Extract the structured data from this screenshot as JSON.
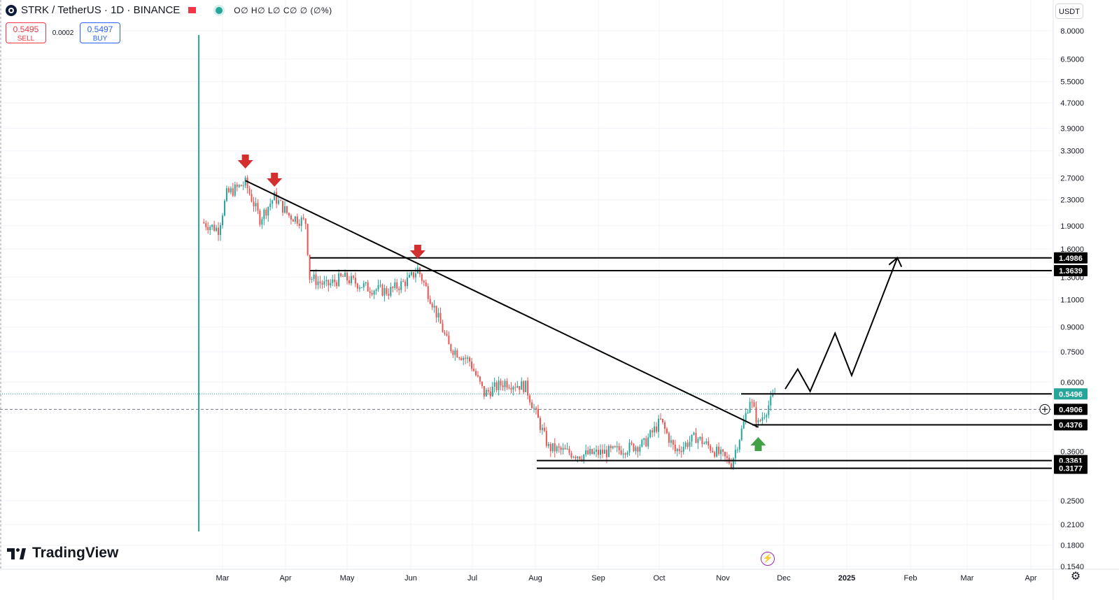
{
  "header": {
    "symbol_title": "STRK / TetherUS · 1D · BINANCE",
    "ohlc": "O∅ H∅ L∅ C∅ ∅ (∅%)",
    "sell_price": "0.5495",
    "sell_label": "SELL",
    "spread": "0.0002",
    "buy_price": "0.5497",
    "buy_label": "BUY",
    "currency": "USDT"
  },
  "brand": {
    "name": "TradingView"
  },
  "chart_data": {
    "type": "candlestick",
    "scale": "log",
    "x_axis_labels": [
      "Mar",
      "Apr",
      "May",
      "Jun",
      "Jul",
      "Aug",
      "Sep",
      "Oct",
      "Nov",
      "Dec",
      "2025",
      "Feb",
      "Mar",
      "Apr"
    ],
    "y_axis_labels": [
      "8.0000",
      "6.5000",
      "5.5000",
      "4.7000",
      "3.9000",
      "3.3000",
      "2.7000",
      "2.3000",
      "1.9000",
      "1.6000",
      "1.3000",
      "1.1000",
      "0.9000",
      "0.7500",
      "0.6000",
      "0.3600",
      "0.2500",
      "0.2100",
      "0.1800",
      "0.1540"
    ],
    "price_levels": [
      {
        "label": "1.4986",
        "value": 1.4986,
        "color": "#000000"
      },
      {
        "label": "1.3639",
        "value": 1.3639,
        "color": "#000000"
      },
      {
        "label": "0.5496",
        "value": 0.5496,
        "color": "#26a69a"
      },
      {
        "label": "0.4906",
        "value": 0.4906,
        "color": "#000000"
      },
      {
        "label": "0.4376",
        "value": 0.4376,
        "color": "#000000"
      },
      {
        "label": "0.3361",
        "value": 0.3361,
        "color": "#000000"
      },
      {
        "label": "0.3177",
        "value": 0.3177,
        "color": "#000000"
      }
    ],
    "series_path": [
      {
        "x": "Feb 20",
        "y": 1.95
      },
      {
        "x": "Feb 28",
        "y": 1.85
      },
      {
        "x": "Mar 3",
        "y": 2.4
      },
      {
        "x": "Mar 12",
        "y": 2.6
      },
      {
        "x": "Mar 19",
        "y": 2.0
      },
      {
        "x": "Mar 26",
        "y": 2.35
      },
      {
        "x": "Apr 2",
        "y": 2.05
      },
      {
        "x": "Apr 10",
        "y": 1.95
      },
      {
        "x": "Apr 12",
        "y": 1.3
      },
      {
        "x": "Apr 20",
        "y": 1.22
      },
      {
        "x": "Apr 28",
        "y": 1.3
      },
      {
        "x": "May 10",
        "y": 1.2
      },
      {
        "x": "May 20",
        "y": 1.17
      },
      {
        "x": "May 30",
        "y": 1.28
      },
      {
        "x": "Jun 3",
        "y": 1.38
      },
      {
        "x": "Jun 10",
        "y": 1.08
      },
      {
        "x": "Jun 18",
        "y": 0.78
      },
      {
        "x": "Jun 28",
        "y": 0.7
      },
      {
        "x": "Jul 5",
        "y": 0.55
      },
      {
        "x": "Jul 15",
        "y": 0.6
      },
      {
        "x": "Jul 25",
        "y": 0.58
      },
      {
        "x": "Aug 5",
        "y": 0.37
      },
      {
        "x": "Aug 20",
        "y": 0.35
      },
      {
        "x": "Sep 5",
        "y": 0.36
      },
      {
        "x": "Sep 20",
        "y": 0.38
      },
      {
        "x": "Sep 28",
        "y": 0.45
      },
      {
        "x": "Oct 5",
        "y": 0.36
      },
      {
        "x": "Oct 15",
        "y": 0.4
      },
      {
        "x": "Oct 22",
        "y": 0.37
      },
      {
        "x": "Nov 1",
        "y": 0.33
      },
      {
        "x": "Nov 6",
        "y": 0.42
      },
      {
        "x": "Nov 10",
        "y": 0.53
      },
      {
        "x": "Nov 14",
        "y": 0.44
      },
      {
        "x": "Nov 22",
        "y": 0.55
      }
    ],
    "annotations": [
      {
        "type": "trendline",
        "from": {
          "x": "Mar 12",
          "y": 2.65
        },
        "to": {
          "x": "Nov 14",
          "y": 0.43
        }
      },
      {
        "type": "projection",
        "points": [
          {
            "x": "Nov 27",
            "y": 0.57
          },
          {
            "x": "Dec 3",
            "y": 0.66
          },
          {
            "x": "Dec 9",
            "y": 0.56
          },
          {
            "x": "Dec 21",
            "y": 0.86
          },
          {
            "x": "Dec 29",
            "y": 0.63
          },
          {
            "x": "Jan 20",
            "y": 1.5
          }
        ]
      },
      {
        "type": "arrow-down",
        "at": {
          "x": "Mar 12"
        },
        "color": "#d32f2f"
      },
      {
        "type": "arrow-down",
        "at": {
          "x": "Mar 26"
        },
        "color": "#d32f2f"
      },
      {
        "type": "arrow-down",
        "at": {
          "x": "Jun 3"
        },
        "color": "#d32f2f"
      },
      {
        "type": "arrow-up",
        "at": {
          "x": "Nov 14"
        },
        "color": "#43a047"
      }
    ],
    "colors": {
      "up": "#26a69a",
      "down": "#ef5350",
      "grid": "#f0f3fa"
    }
  }
}
